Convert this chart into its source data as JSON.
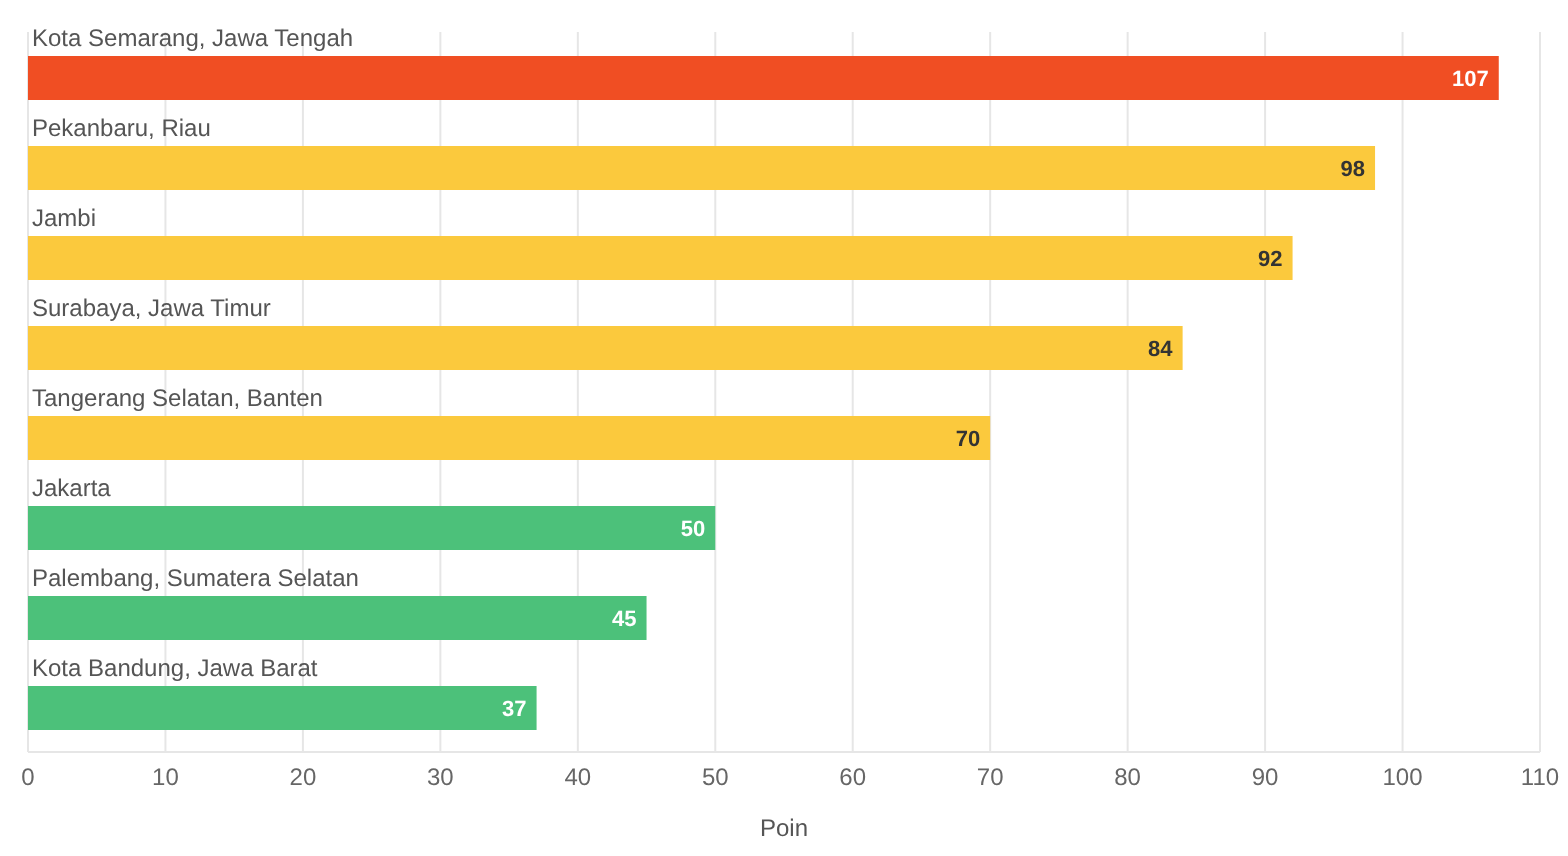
{
  "chart_data": {
    "type": "bar",
    "orientation": "horizontal",
    "categories": [
      "Kota Semarang, Jawa Tengah",
      "Pekanbaru, Riau",
      "Jambi",
      "Surabaya, Jawa Timur",
      "Tangerang Selatan, Banten",
      "Jakarta",
      "Palembang, Sumatera Selatan",
      "Kota Bandung, Jawa Barat"
    ],
    "values": [
      107,
      98,
      92,
      84,
      70,
      50,
      45,
      37
    ],
    "colors": [
      "#f04e23",
      "#fbc93d",
      "#fbc93d",
      "#fbc93d",
      "#fbc93d",
      "#4cc17a",
      "#4cc17a",
      "#4cc17a"
    ],
    "xlabel": "Poin",
    "xlim": [
      0,
      110
    ],
    "xticks": [
      0,
      10,
      20,
      30,
      40,
      50,
      60,
      70,
      80,
      90,
      100,
      110
    ],
    "grid": "x",
    "data_labels": true
  }
}
